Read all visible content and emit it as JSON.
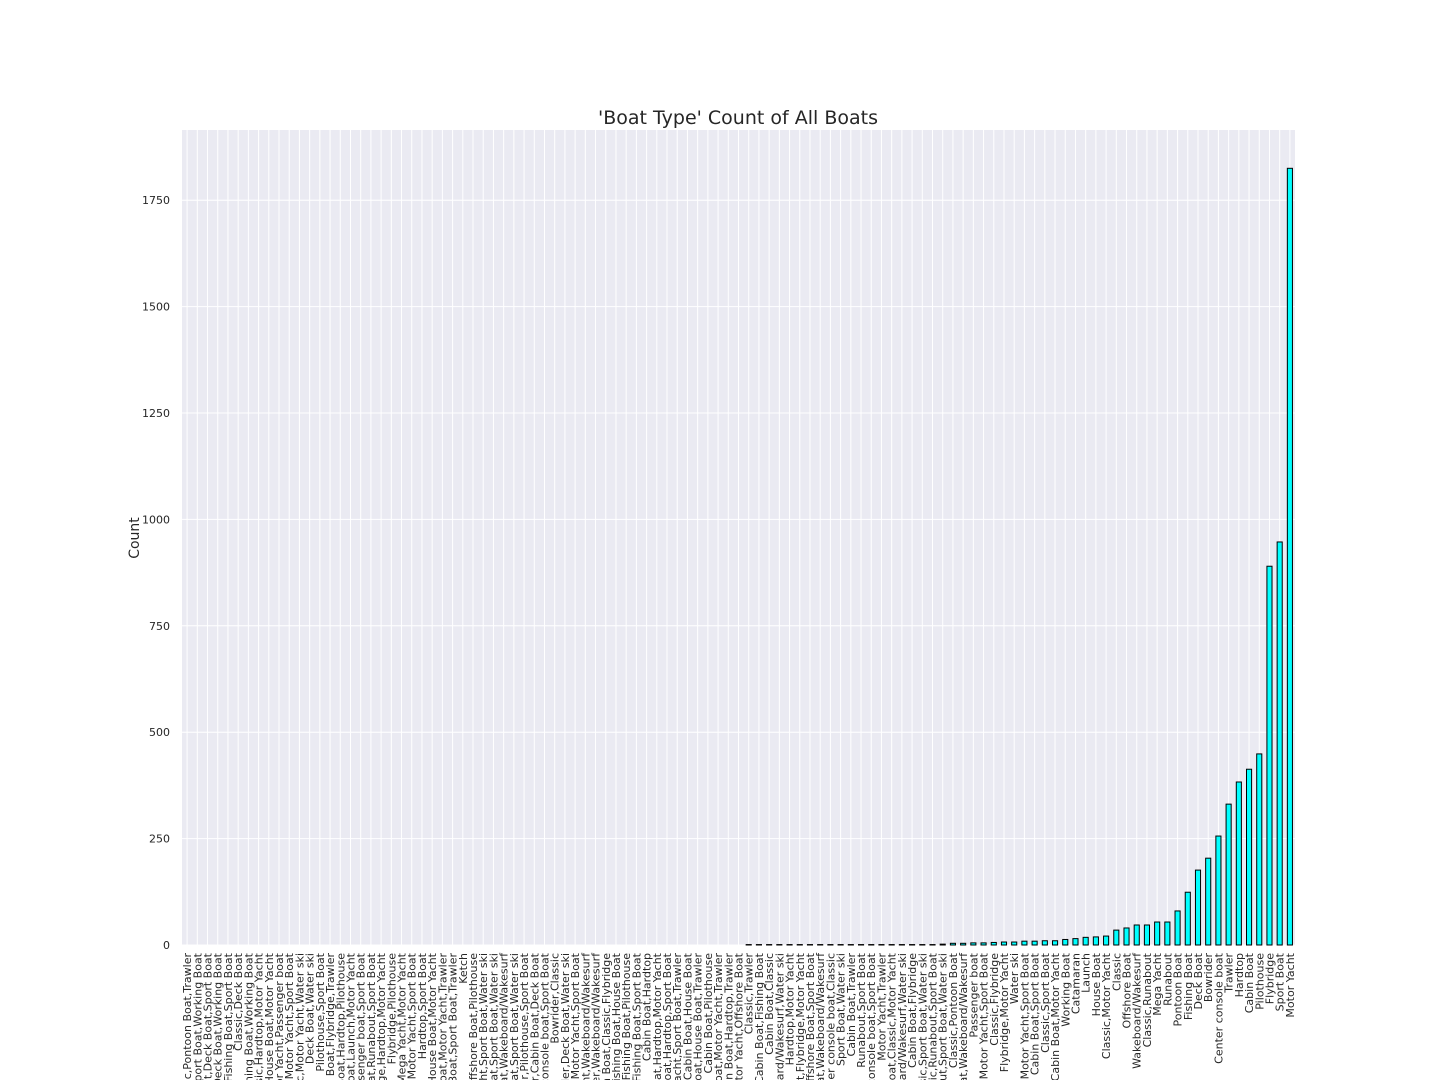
{
  "chart_data": {
    "type": "bar",
    "title": "'Boat Type' Count of All Boats",
    "y_label": "Count",
    "categories": [
      "sic,Pontoon Boat,Trawler",
      "Sport Boat,Working Boat",
      "oat,Deck Boat,Sport Boat",
      ",Deck Boat,Working Boat",
      ",Fishing Boat,Sport Boat",
      "Classic,Deck Boat",
      "ishing Boat,Working Boat",
      "assic,Hardtop,Motor Yacht",
      ",House Boat,Motor Yacht",
      "tor Yacht,Passenger boat",
      "sic,Motor Yacht,Sport Boat",
      "ic,Motor Yacht,Water ski",
      "Deck Boat,Water ski",
      "Pilothouse,Sport Boat",
      "g Boat,Flybridge,Trawler",
      "Boat,Hardtop,Pilothouse",
      "Boat,Launch,Motor Yacht",
      "assenger boat,Sport Boat",
      "oat,Runabout,Sport Boat",
      "idge,Hardtop,Motor Yacht",
      "Flybridge,Pilothouse",
      "p,Mega Yacht,Motor Yacht",
      "p,Motor Yacht,Sport Boat",
      "Hardtop,Sport Boat",
      "House Boat,Motor Yacht",
      "Boat,Motor Yacht,Trawler",
      "e Boat,Sport Boat,Trawler",
      "Ketch",
      "Offshore Boat,Pilothouse",
      "acht,Sport Boat,Water ski",
      "Boat,Sport Boat,Water ski",
      "oat,Wakeboard/Wakesurf",
      "boat,Sport Boat,Water ski",
      "er,Pilothouse,Sport Boat",
      "er,Cabin Boat,Deck Boat",
      "r console boat,Sport Boat",
      "Bowrider,Classic",
      "rider,Deck Boat,Water ski",
      "r,Motor Yacht,Sport Boat",
      "cht,Wakeboard/Wakesurf",
      "der,Wakeboard/Wakesurf",
      "in Boat,Classic,Flybridge",
      "Fishing Boat,House Boat",
      ",Fishing Boat,Pilothouse",
      ",Fishing Boat,Sport Boat",
      "Cabin Boat,Hardtop",
      "Boat,Hardtop,Motor Yacht",
      "Boat,Hardtop,Sport Boat",
      "Yacht,Sport Boat,Trawler",
      "Cabin Boat,House Boat",
      "Boat,House Boat,Trawler",
      "Cabin Boat,Pilothouse",
      "Boat,Motor Yacht,Trawler",
      "bin Boat,Hardtop,Trawler",
      "otor Yacht,Offshore Boat",
      "Classic,Trawler",
      "Cabin Boat,Fishing Boat",
      "Cabin Boat,Classic",
      "board/Wakesurf,Water ski",
      "Hardtop,Motor Yacht",
      "oat,Flybridge,Motor Yacht",
      "Offshore Boat,Sport Boat",
      "oat,Wakeboard/Wakesurf",
      "enter console boat,Classic",
      "Sport Boat,Water ski",
      "Cabin Boat,Trawler",
      "Runabout,Sport Boat",
      "r console boat,Sport Boat",
      "Motor Yacht,Trawler",
      "Boat,Classic,Motor Yacht",
      "board/Wakesurf,Water ski",
      "Cabin Boat,Flybridge",
      "lassic,Sport Boat,Water ski",
      "lassic,Runabout,Sport Boat",
      "bout,Sport Boat,Water ski",
      "Classic,Pontoon Boat",
      "oat,Wakeboard/Wakesurf",
      "Passenger boat",
      "at,Motor Yacht,Sport Boat",
      "Classic,Flybridge",
      "Flybridge,Motor Yacht",
      "Water ski",
      "Motor Yacht,Sport Boat",
      "Cabin Boat,Sport Boat",
      "Classic,Sport Boat",
      "Cabin Boat,Motor Yacht",
      "Working Boat",
      "Catamaran",
      "Launch",
      "House Boat",
      "Classic,Motor Yacht",
      "Classic",
      "Offshore Boat",
      "Wakeboard/Wakesurf",
      "Classic,Runabout",
      "Mega Yacht",
      "Runabout",
      "Pontoon Boat",
      "Fishing Boat",
      "Deck Boat",
      "Bowrider",
      "Center console boat",
      "Trawler",
      "Hardtop",
      "Cabin Boat",
      "Pilothouse",
      "Flybridge",
      "Sport Boat",
      "Motor Yacht"
    ],
    "values": [
      0,
      0,
      0,
      0,
      0,
      0,
      0,
      0,
      0,
      0,
      0,
      0,
      0,
      0,
      0,
      0,
      0,
      0,
      0,
      0,
      0,
      0,
      0,
      0,
      0,
      0,
      0,
      0,
      0,
      0,
      0,
      0,
      0,
      0,
      0,
      0,
      0,
      0,
      0,
      0,
      0,
      0,
      0,
      0,
      0,
      0,
      0,
      0,
      0,
      0,
      0,
      0,
      0,
      0,
      0,
      1,
      1,
      1,
      1,
      1,
      1,
      1,
      1,
      1,
      1,
      1,
      1,
      1,
      1,
      1,
      1,
      1,
      1,
      1,
      2,
      4,
      4,
      5,
      5,
      6,
      7,
      7,
      9,
      9,
      10,
      10,
      13,
      15,
      18,
      19,
      21,
      35,
      40,
      47,
      47,
      54,
      54,
      80,
      124,
      176,
      204,
      256,
      331,
      383,
      413,
      449,
      890,
      947,
      1825
    ],
    "color": "#00ffff",
    "edge_color": "#000000",
    "ylim": [
      0,
      1915
    ],
    "yticks": [
      0,
      250,
      500,
      750,
      1000,
      1250,
      1500,
      1750
    ],
    "grid": true
  }
}
